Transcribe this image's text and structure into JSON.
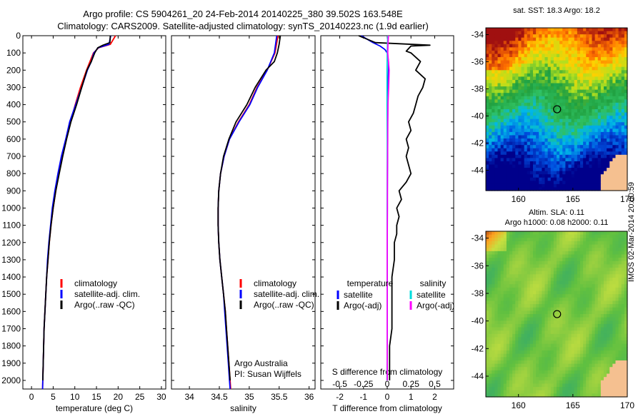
{
  "title_line1": "Argo profile: CS 5904261_20 24-Feb-2014 20140225_380 39.502S 163.548E",
  "title_line2": "Climatology: CARS2009. Satellite-adjusted climatology: synTS_20140223.nc (1.9d earlier)",
  "footer_stamp": "IMOS 02-Mar-2014 20:00:59",
  "chart_data": [
    {
      "id": "temperature",
      "type": "line",
      "xlabel": "temperature (deg C)",
      "ylabel": "",
      "xlim": [
        -2,
        31
      ],
      "ylim": [
        2050,
        0
      ],
      "xticks": [
        0,
        5,
        10,
        15,
        20,
        25,
        30
      ],
      "yticks": [
        0,
        100,
        200,
        300,
        400,
        500,
        600,
        700,
        800,
        900,
        1000,
        1100,
        1200,
        1300,
        1400,
        1500,
        1600,
        1700,
        1800,
        1900,
        2000
      ],
      "legend": [
        "climatology",
        "satellite-adj. clim.",
        "Argo(..raw -QC)"
      ],
      "legend_placement": "lower-right",
      "series": [
        {
          "name": "climatology",
          "color": "#ff0000",
          "depth": [
            0,
            50,
            70,
            100,
            150,
            200,
            300,
            400,
            500,
            600,
            700,
            800,
            900,
            1000,
            1100,
            1200,
            1300,
            1400,
            1500,
            1600,
            1700,
            1800,
            1900,
            2000,
            2050
          ],
          "value": [
            19.4,
            18.2,
            15.5,
            14.3,
            13.5,
            12.7,
            11.3,
            10.1,
            9.0,
            8.0,
            7.1,
            6.3,
            5.6,
            5.0,
            4.5,
            4.1,
            3.8,
            3.5,
            3.3,
            3.1,
            2.9,
            2.8,
            2.7,
            2.6,
            2.55
          ]
        },
        {
          "name": "satellite-adj. clim.",
          "color": "#0000ff",
          "depth": [
            0,
            50,
            70,
            100,
            150,
            200,
            300,
            400,
            500,
            600,
            700,
            800,
            900,
            1000,
            1100,
            1200,
            1300,
            1400,
            1500,
            1600,
            1700,
            1800,
            1900,
            2000,
            2050
          ],
          "value": [
            18.3,
            17.9,
            15.4,
            14.4,
            13.8,
            12.9,
            11.6,
            10.2,
            8.8,
            7.9,
            6.9,
            6.1,
            5.4,
            4.8,
            4.4,
            4.0,
            3.7,
            3.5,
            3.3,
            3.1,
            2.9,
            2.8,
            2.7,
            2.6,
            2.55
          ]
        },
        {
          "name": "Argo(..raw -QC)",
          "color": "#000000",
          "depth": [
            0,
            40,
            55,
            70,
            100,
            150,
            200,
            300,
            400,
            500,
            600,
            700,
            800,
            900,
            1000,
            1100,
            1200,
            1300,
            1400,
            1500,
            1600,
            1700,
            1800,
            1900,
            2000
          ],
          "value": [
            18.2,
            18.1,
            16.5,
            15.3,
            14.6,
            13.8,
            12.8,
            11.6,
            10.4,
            9.1,
            8.1,
            7.2,
            6.4,
            5.6,
            5.0,
            4.5,
            4.1,
            3.8,
            3.5,
            3.3,
            3.1,
            2.9,
            2.8,
            2.7,
            2.6
          ]
        }
      ]
    },
    {
      "id": "salinity",
      "type": "line",
      "xlabel": "salinity",
      "ylabel": "",
      "xlim": [
        33.7,
        36.1
      ],
      "ylim": [
        2050,
        0
      ],
      "xticks": [
        34,
        34.5,
        35,
        35.5,
        36
      ],
      "legend": [
        "climatology",
        "satellite-adj. clim.",
        "Argo(..raw -QC)"
      ],
      "legend_placement": "lower-right",
      "annotation_lines": [
        "Argo Australia",
        "PI: Susan Wijffels"
      ],
      "series": [
        {
          "name": "climatology",
          "color": "#ff0000",
          "depth": [
            0,
            100,
            200,
            300,
            400,
            500,
            600,
            700,
            800,
            900,
            1000,
            1100,
            1200,
            1300,
            1400,
            1500,
            1600,
            1700,
            1800,
            1900,
            2000,
            2050
          ],
          "value": [
            35.48,
            35.43,
            35.3,
            35.13,
            35.0,
            34.82,
            34.67,
            34.58,
            34.52,
            34.49,
            34.48,
            34.48,
            34.49,
            34.51,
            34.54,
            34.57,
            34.6,
            34.62,
            34.64,
            34.66,
            34.68,
            34.69
          ]
        },
        {
          "name": "satellite-adj. clim.",
          "color": "#0000ff",
          "depth": [
            0,
            100,
            200,
            300,
            400,
            500,
            600,
            700,
            800,
            900,
            1000,
            1100,
            1200,
            1300,
            1400,
            1500,
            1600,
            1700,
            1800,
            1900,
            2000,
            2050
          ],
          "value": [
            35.46,
            35.42,
            35.3,
            35.14,
            35.01,
            34.83,
            34.67,
            34.58,
            34.52,
            34.49,
            34.48,
            34.48,
            34.49,
            34.51,
            34.54,
            34.57,
            34.59,
            34.61,
            34.63,
            34.65,
            34.67,
            34.68
          ]
        },
        {
          "name": "Argo(..raw -QC)",
          "color": "#000000",
          "depth": [
            0,
            50,
            100,
            150,
            200,
            300,
            400,
            500,
            600,
            700,
            800,
            900,
            1000,
            1100,
            1200,
            1300,
            1400,
            1500,
            1600,
            1700,
            1800,
            1900,
            2000
          ],
          "value": [
            35.52,
            35.5,
            35.47,
            35.42,
            35.28,
            35.1,
            34.96,
            34.78,
            34.66,
            34.57,
            34.52,
            34.49,
            34.48,
            34.48,
            34.49,
            34.51,
            34.54,
            34.57,
            34.6,
            34.62,
            34.64,
            34.66,
            34.68
          ]
        }
      ]
    },
    {
      "id": "differences",
      "type": "line",
      "xlabel": "T difference from climatology",
      "xlabel_secondary": "S difference from climatology",
      "ylabel": "",
      "xlim": [
        -2.8,
        2.8
      ],
      "ylim": [
        2050,
        0
      ],
      "xticks_T": [
        -2,
        -1,
        0,
        1,
        2
      ],
      "xticks_S": [
        "-0.5",
        "-0.25",
        "0",
        "0.25",
        "0.5"
      ],
      "legend_left_title": "temperature",
      "legend_right_title": "salinity",
      "legend": [
        "satellite",
        "Argo(-adj)",
        "satellite",
        "Argo(-adj)"
      ],
      "legend_placement": "lower",
      "series": [
        {
          "name": "satellite",
          "group": "temperature",
          "color": "#0000ff",
          "depth": [
            0,
            40,
            60,
            80,
            100,
            150,
            200,
            300,
            500,
            800,
            1000,
            1500,
            2000
          ],
          "value": [
            -1.1,
            -0.6,
            -0.3,
            -0.1,
            0.0,
            0.05,
            0.05,
            0.03,
            0.02,
            0.01,
            0.0,
            0.0,
            0.0
          ]
        },
        {
          "name": "Argo(-adj)",
          "group": "temperature",
          "color": "#000000",
          "depth": [
            0,
            40,
            55,
            60,
            75,
            90,
            100,
            150,
            200,
            250,
            300,
            350,
            400,
            450,
            500,
            550,
            600,
            650,
            700,
            750,
            800,
            850,
            900,
            950,
            1000,
            1050,
            1100,
            1150,
            1200,
            1300,
            1400,
            1500,
            1600,
            1700,
            1800,
            1900,
            2000
          ],
          "value": [
            -1.2,
            -0.5,
            1.8,
            1.0,
            0.9,
            0.8,
            1.0,
            1.4,
            1.2,
            1.6,
            1.5,
            1.3,
            1.2,
            1.1,
            0.9,
            1.0,
            0.8,
            0.9,
            0.8,
            0.9,
            1.0,
            0.8,
            0.5,
            0.6,
            0.4,
            0.5,
            0.4,
            0.4,
            0.3,
            0.3,
            0.2,
            0.2,
            0.2,
            0.2,
            0.1,
            0.1,
            0.1
          ]
        },
        {
          "name": "satellite",
          "group": "salinity",
          "color": "#00dddd",
          "depth": [
            0,
            100,
            200,
            400,
            600,
            800,
            1000,
            1200,
            1500,
            1800,
            2000
          ],
          "value": [
            0.02,
            0.0,
            -0.01,
            -0.01,
            0.0,
            0.0,
            0.0,
            0.0,
            0.0,
            0.0,
            -0.01
          ]
        },
        {
          "name": "Argo(-adj)",
          "group": "salinity",
          "color": "#ff00ff",
          "depth": [
            0,
            50,
            100,
            200,
            300,
            400,
            500,
            600,
            800,
            1000,
            1200,
            1500,
            2000
          ],
          "value": [
            0.05,
            0.03,
            0.02,
            0.08,
            0.06,
            0.03,
            0.02,
            0.02,
            0.01,
            0.01,
            0.0,
            0.0,
            0.0
          ]
        }
      ]
    },
    {
      "id": "sst-map",
      "type": "heatmap",
      "title": "sat. SST: 18.3 Argo: 18.2",
      "xlim": [
        157,
        170
      ],
      "ylim": [
        -45.5,
        -33.5
      ],
      "xticks": [
        160,
        165,
        170
      ],
      "yticks": [
        -34,
        -36,
        -38,
        -40,
        -42,
        -44
      ],
      "marker": {
        "lon": 163.548,
        "lat": -39.502
      },
      "colors": [
        "#00008b",
        "#0050e0",
        "#00b8e8",
        "#30c060",
        "#20a040",
        "#b0e020",
        "#ffd000",
        "#ff7000",
        "#a01010"
      ]
    },
    {
      "id": "sla-map",
      "type": "heatmap",
      "title": "Altim. SLA: 0.11",
      "subtitle": "Argo h1000: 0.08 h2000: 0.11",
      "xlim": [
        157,
        170
      ],
      "ylim": [
        -45.5,
        -33.5
      ],
      "xticks": [
        160,
        165,
        170
      ],
      "yticks": [
        -34,
        -36,
        -38,
        -40,
        -42,
        -44
      ],
      "marker": {
        "lon": 163.548,
        "lat": -39.502
      },
      "colors": [
        "#40b060",
        "#60c040",
        "#9ad040",
        "#c8e040",
        "#ffa020",
        "#a03010"
      ]
    }
  ]
}
